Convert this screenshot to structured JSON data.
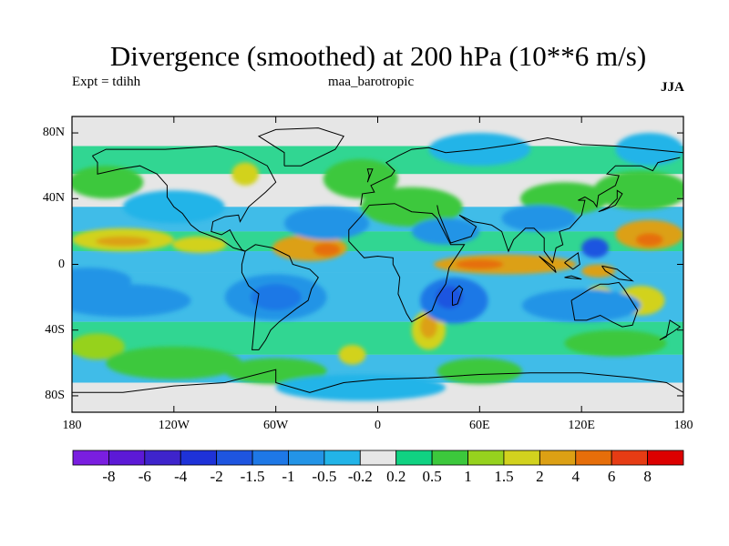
{
  "title": "Divergence (smoothed) at 200 hPa (10**6 m/s)",
  "experiment_label": "Expt = tdihh",
  "run_name": "maa_barotropic",
  "season": "JJA",
  "map": {
    "lat_ticks": [
      {
        "value": 80,
        "label": "80N"
      },
      {
        "value": 40,
        "label": "40N"
      },
      {
        "value": 0,
        "label": "0"
      },
      {
        "value": -40,
        "label": "40S"
      },
      {
        "value": -80,
        "label": "80S"
      }
    ],
    "lon_ticks": [
      {
        "value": -180,
        "label": "180"
      },
      {
        "value": -120,
        "label": "120W"
      },
      {
        "value": -60,
        "label": "60W"
      },
      {
        "value": 0,
        "label": "0"
      },
      {
        "value": 60,
        "label": "60E"
      },
      {
        "value": 120,
        "label": "120E"
      },
      {
        "value": 180,
        "label": "180"
      }
    ],
    "lon_range": [
      -180,
      180
    ],
    "lat_range": [
      -90,
      90
    ],
    "background_color": "#e6e6e6",
    "coastline_color": "#000000"
  },
  "colorbar": {
    "colors": [
      "#7a1ee0",
      "#5c19d6",
      "#3e24cc",
      "#1e32d8",
      "#1e55e0",
      "#1e78e6",
      "#2394e6",
      "#22b4e8",
      "#e6e6e6",
      "#10d282",
      "#3cc83c",
      "#96d21e",
      "#d2d21e",
      "#dca014",
      "#e66e0a",
      "#e63c14",
      "#dc0000"
    ],
    "labels": [
      "-8",
      "-6",
      "-4",
      "-2",
      "-1.5",
      "-1",
      "-0.5",
      "-0.2",
      "0.2",
      "0.5",
      "1",
      "1.5",
      "2",
      "4",
      "6",
      "8"
    ]
  },
  "field_blobs": [
    {
      "lon": -150,
      "lat": 15,
      "rx": 30,
      "ry": 7,
      "level": 4
    },
    {
      "lon": -150,
      "lat": 14,
      "rx": 16,
      "ry": 3,
      "level": 5
    },
    {
      "lon": -105,
      "lat": 12,
      "rx": 16,
      "ry": 5,
      "level": 4
    },
    {
      "lon": -40,
      "lat": 10,
      "rx": 22,
      "ry": 8,
      "level": 5
    },
    {
      "lon": -30,
      "lat": 9,
      "rx": 8,
      "ry": 4,
      "level": 6
    },
    {
      "lon": 75,
      "lat": 0,
      "rx": 42,
      "ry": 6,
      "level": 5
    },
    {
      "lon": 60,
      "lat": 0,
      "rx": 14,
      "ry": 3,
      "level": 6
    },
    {
      "lon": 160,
      "lat": 18,
      "rx": 20,
      "ry": 9,
      "level": 5
    },
    {
      "lon": 160,
      "lat": 15,
      "rx": 8,
      "ry": 4,
      "level": 6
    },
    {
      "lon": 130,
      "lat": -4,
      "rx": 10,
      "ry": 4,
      "level": 5
    },
    {
      "lon": 155,
      "lat": -22,
      "rx": 14,
      "ry": 9,
      "level": 4
    },
    {
      "lon": -78,
      "lat": 55,
      "rx": 8,
      "ry": 7,
      "level": 4
    },
    {
      "lon": 30,
      "lat": -40,
      "rx": 10,
      "ry": 12,
      "level": 4
    },
    {
      "lon": 30,
      "lat": -38,
      "rx": 5,
      "ry": 7,
      "level": 5
    },
    {
      "lon": -15,
      "lat": -55,
      "rx": 8,
      "ry": 6,
      "level": 4
    },
    {
      "lon": 130,
      "lat": -18,
      "rx": 8,
      "ry": 5,
      "level": 4
    },
    {
      "lon": -165,
      "lat": -50,
      "rx": 16,
      "ry": 8,
      "level": 3
    },
    {
      "lon": -160,
      "lat": 50,
      "rx": 22,
      "ry": 10,
      "level": 2
    },
    {
      "lon": 110,
      "lat": 40,
      "rx": 26,
      "ry": 10,
      "level": 2
    },
    {
      "lon": 155,
      "lat": 45,
      "rx": 28,
      "ry": 12,
      "level": 2
    },
    {
      "lon": -10,
      "lat": 52,
      "rx": 22,
      "ry": 12,
      "level": 2
    },
    {
      "lon": 20,
      "lat": 35,
      "rx": 30,
      "ry": 12,
      "level": 2
    },
    {
      "lon": -120,
      "lat": -60,
      "rx": 40,
      "ry": 10,
      "level": 2
    },
    {
      "lon": 140,
      "lat": -48,
      "rx": 30,
      "ry": 8,
      "level": 2
    },
    {
      "lon": -60,
      "lat": -65,
      "rx": 30,
      "ry": 8,
      "level": 2
    },
    {
      "lon": 60,
      "lat": -65,
      "rx": 25,
      "ry": 8,
      "level": 2
    },
    {
      "lon": -170,
      "lat": -10,
      "rx": 25,
      "ry": 8,
      "level": -2
    },
    {
      "lon": -150,
      "lat": -22,
      "rx": 40,
      "ry": 10,
      "level": -2
    },
    {
      "lon": -60,
      "lat": -20,
      "rx": 30,
      "ry": 14,
      "level": -2
    },
    {
      "lon": -60,
      "lat": -20,
      "rx": 15,
      "ry": 8,
      "level": -3
    },
    {
      "lon": 45,
      "lat": -22,
      "rx": 20,
      "ry": 14,
      "level": -3
    },
    {
      "lon": 42,
      "lat": -20,
      "rx": 8,
      "ry": 7,
      "level": -4
    },
    {
      "lon": 120,
      "lat": -25,
      "rx": 35,
      "ry": 10,
      "level": -2
    },
    {
      "lon": 128,
      "lat": 10,
      "rx": 8,
      "ry": 6,
      "level": -4
    },
    {
      "lon": 40,
      "lat": 20,
      "rx": 20,
      "ry": 8,
      "level": -2
    },
    {
      "lon": -30,
      "lat": 25,
      "rx": 25,
      "ry": 10,
      "level": -2
    },
    {
      "lon": 95,
      "lat": 28,
      "rx": 22,
      "ry": 8,
      "level": -2
    },
    {
      "lon": -120,
      "lat": 35,
      "rx": 30,
      "ry": 10,
      "level": -1
    },
    {
      "lon": 60,
      "lat": 70,
      "rx": 30,
      "ry": 10,
      "level": -1
    },
    {
      "lon": -10,
      "lat": -75,
      "rx": 50,
      "ry": 8,
      "level": -1
    },
    {
      "lon": 160,
      "lat": 70,
      "rx": 20,
      "ry": 10,
      "level": -1
    }
  ]
}
